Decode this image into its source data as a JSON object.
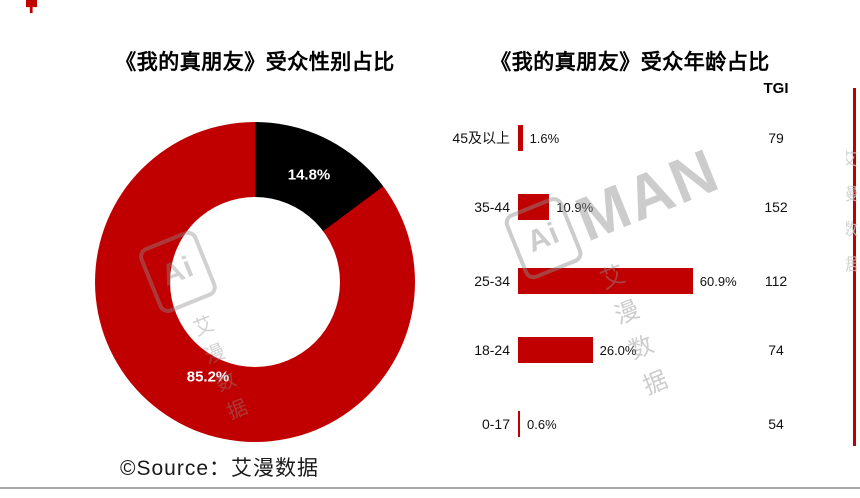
{
  "footer": {
    "source": "©Source：艾漫数据"
  },
  "watermark": {
    "box_text": "Ai",
    "brand": "MAN",
    "cn": "艾漫数据"
  },
  "chart_data": [
    {
      "type": "pie",
      "donut": true,
      "title": "《我的真朋友》受众性别占比",
      "labels": [
        "85.2%",
        "14.8%"
      ],
      "values": [
        85.2,
        14.8
      ],
      "colors": [
        "#c00000",
        "#000000"
      ],
      "legend_position": "none",
      "label_color": "#ffffff"
    },
    {
      "type": "bar",
      "orientation": "horizontal",
      "title": "《我的真朋友》受众年龄占比",
      "tgi_header": "TGI",
      "categories": [
        "45及以上",
        "35-44",
        "25-34",
        "18-24",
        "0-17"
      ],
      "values": [
        1.6,
        10.9,
        60.9,
        26.0,
        0.6
      ],
      "value_labels": [
        "1.6%",
        "10.9%",
        "60.9%",
        "26.0%",
        "0.6%"
      ],
      "tgi_values": [
        79,
        152,
        112,
        74,
        54
      ],
      "xlim": [
        0,
        65
      ],
      "bar_color": "#c00000",
      "grid": false
    }
  ]
}
